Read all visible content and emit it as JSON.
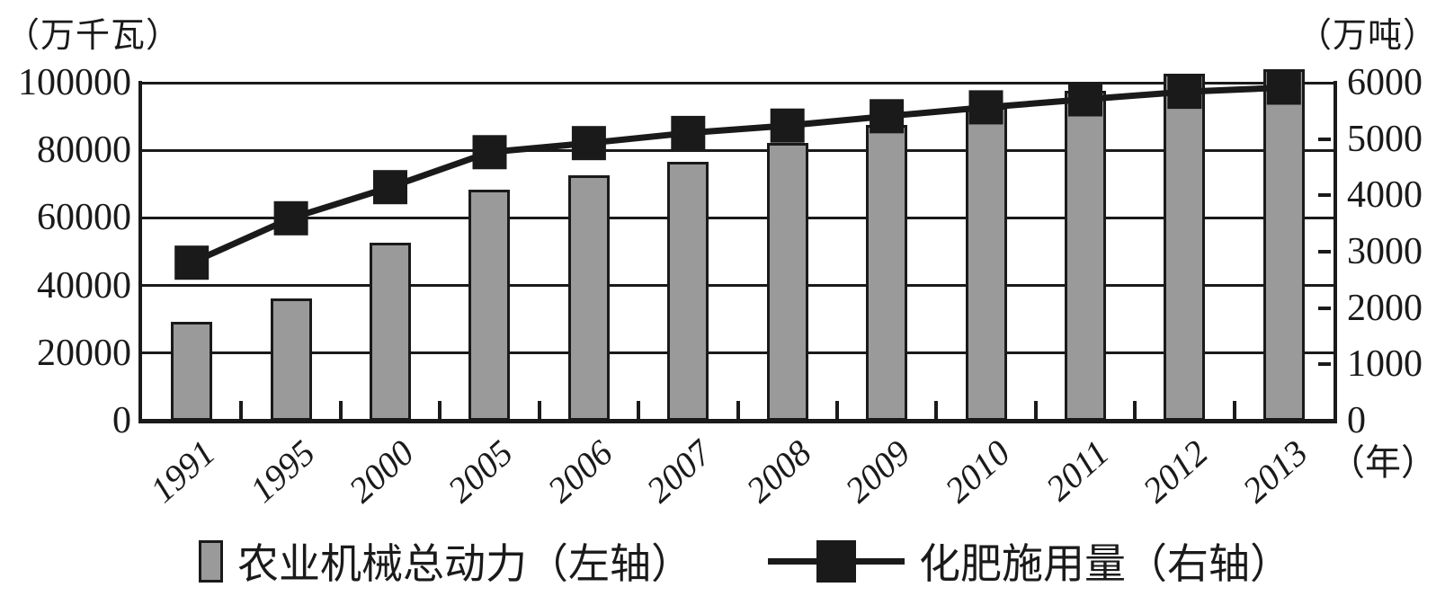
{
  "chart_data": {
    "type": "combo",
    "categories": [
      "1991",
      "1995",
      "2000",
      "2005",
      "2006",
      "2007",
      "2008",
      "2009",
      "2010",
      "2011",
      "2012",
      "2013"
    ],
    "series": [
      {
        "name": "农业机械总动力（左轴）",
        "type": "bar",
        "axis": "left",
        "values": [
          29389,
          36118,
          52574,
          68398,
          72522,
          76590,
          82190,
          87496,
          92780,
          97735,
          102559,
          103907
        ]
      },
      {
        "name": "化肥施用量（右轴）",
        "type": "line",
        "axis": "right",
        "values": [
          2805,
          3594,
          4146,
          4766,
          4928,
          5108,
          5239,
          5404,
          5562,
          5704,
          5839,
          5912
        ]
      }
    ],
    "left_axis": {
      "unit": "（万千瓦）",
      "min": 0,
      "max": 100000,
      "ticks": [
        0,
        20000,
        40000,
        60000,
        80000,
        100000
      ]
    },
    "right_axis": {
      "unit": "（万吨）",
      "min": 0,
      "max": 6000,
      "ticks": [
        0,
        1000,
        2000,
        3000,
        4000,
        5000,
        6000
      ]
    },
    "x_axis": {
      "unit": "（年）"
    },
    "legend_position": "bottom",
    "grid": true,
    "colors": {
      "bar_fill": "#9a9a9a",
      "bar_border": "#1a1a1a",
      "line": "#1a1a1a",
      "marker": "#1a1a1a"
    }
  }
}
